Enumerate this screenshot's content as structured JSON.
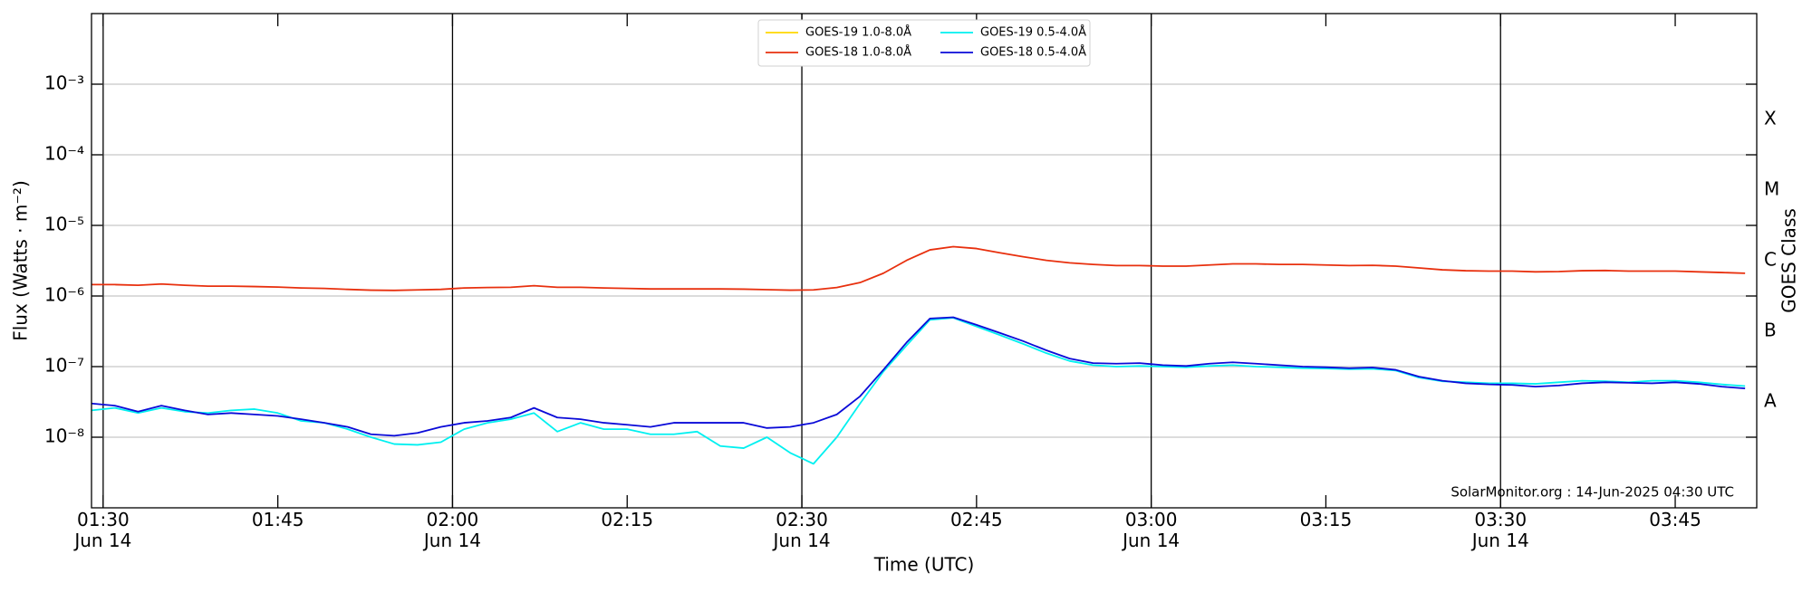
{
  "chart_data": {
    "type": "line",
    "y_label": "Flux (Watts · m⁻²)",
    "x_label": "Time (UTC)",
    "y2_label": "GOES Class",
    "annotation": "SolarMonitor.org : 14-Jun-2025 04:30 UTC",
    "log_y": true,
    "grid": true,
    "legend": "top",
    "xlim": [
      "01:29",
      "03:52"
    ],
    "ylim": [
      1e-09,
      0.01
    ],
    "xticks": [
      {
        "value": "01:30",
        "label": "01:30\nJun 14"
      },
      "01:45",
      {
        "value": "02:00",
        "label": "02:00\nJun 14"
      },
      "02:15",
      {
        "value": "02:30",
        "label": "02:30\nJun 14"
      },
      "02:45",
      {
        "value": "03:00",
        "label": "03:00\nJun 14"
      },
      "03:15",
      {
        "value": "03:30",
        "label": "03:30\nJun 14"
      },
      "03:45"
    ],
    "yticks": [
      {
        "value": 0.001,
        "label": "10⁻³"
      },
      {
        "value": 0.0001,
        "label": "10⁻⁴"
      },
      {
        "value": 1e-05,
        "label": "10⁻⁵"
      },
      {
        "value": 1e-06,
        "label": "10⁻⁶"
      },
      {
        "value": 1e-07,
        "label": "10⁻⁷"
      },
      {
        "value": 1e-08,
        "label": "10⁻⁸"
      }
    ],
    "vlines": [
      "01:30",
      "02:00",
      "02:30",
      "03:00",
      "03:30"
    ],
    "classes": [
      {
        "label": "A",
        "value": 1e-08
      },
      {
        "label": "B",
        "value": 1e-07
      },
      {
        "label": "C",
        "value": 1e-06
      },
      {
        "label": "M",
        "value": 1e-05
      },
      {
        "label": "X",
        "value": 0.0001
      }
    ],
    "x": [
      "01:29",
      "01:31",
      "01:33",
      "01:35",
      "01:37",
      "01:39",
      "01:41",
      "01:43",
      "01:45",
      "01:47",
      "01:49",
      "01:51",
      "01:53",
      "01:55",
      "01:57",
      "01:59",
      "02:01",
      "02:03",
      "02:05",
      "02:07",
      "02:09",
      "02:11",
      "02:13",
      "02:15",
      "02:17",
      "02:19",
      "02:21",
      "02:23",
      "02:25",
      "02:27",
      "02:29",
      "02:31",
      "02:33",
      "02:35",
      "02:37",
      "02:39",
      "02:41",
      "02:43",
      "02:45",
      "02:47",
      "02:49",
      "02:51",
      "02:53",
      "02:55",
      "02:57",
      "02:59",
      "03:01",
      "03:03",
      "03:05",
      "03:07",
      "03:09",
      "03:11",
      "03:13",
      "03:15",
      "03:17",
      "03:19",
      "03:21",
      "03:23",
      "03:25",
      "03:27",
      "03:29",
      "03:31",
      "03:33",
      "03:35",
      "03:37",
      "03:39",
      "03:41",
      "03:43",
      "03:45",
      "03:47",
      "03:49",
      "03:51"
    ],
    "series": [
      {
        "name": "GOES-19 1.0-8.0Å",
        "color": "#ffd700",
        "values": [
          null,
          null,
          null,
          null,
          null,
          null,
          null,
          null,
          null,
          null,
          null,
          null,
          null,
          null,
          null,
          null,
          null,
          null,
          null,
          null,
          null,
          null,
          null,
          null,
          null,
          null,
          null,
          null,
          null,
          null,
          null,
          null,
          null,
          null,
          null,
          null,
          null,
          null,
          null,
          null,
          null,
          null,
          null,
          null,
          null,
          null,
          null,
          null,
          null,
          null,
          null,
          null,
          null,
          null,
          null,
          null,
          null,
          null,
          null,
          null,
          null,
          null,
          null,
          null,
          null,
          null,
          null,
          null,
          null,
          null,
          null,
          null
        ]
      },
      {
        "name": "GOES-18 1.0-8.0Å",
        "color": "#e8300e",
        "values": [
          1.45e-06,
          1.45e-06,
          1.42e-06,
          1.48e-06,
          1.42e-06,
          1.38e-06,
          1.38e-06,
          1.36e-06,
          1.34e-06,
          1.3e-06,
          1.28e-06,
          1.24e-06,
          1.21e-06,
          1.2e-06,
          1.22e-06,
          1.24e-06,
          1.3e-06,
          1.32e-06,
          1.33e-06,
          1.4e-06,
          1.33e-06,
          1.33e-06,
          1.3e-06,
          1.28e-06,
          1.26e-06,
          1.26e-06,
          1.26e-06,
          1.26e-06,
          1.25e-06,
          1.23e-06,
          1.21e-06,
          1.22e-06,
          1.32e-06,
          1.55e-06,
          2.1e-06,
          3.2e-06,
          4.5e-06,
          5e-06,
          4.7e-06,
          4.1e-06,
          3.6e-06,
          3.2e-06,
          2.95e-06,
          2.8e-06,
          2.7e-06,
          2.7e-06,
          2.65e-06,
          2.65e-06,
          2.75e-06,
          2.85e-06,
          2.85e-06,
          2.8e-06,
          2.8e-06,
          2.75e-06,
          2.7e-06,
          2.72e-06,
          2.65e-06,
          2.5e-06,
          2.35e-06,
          2.28e-06,
          2.25e-06,
          2.25e-06,
          2.2e-06,
          2.22e-06,
          2.28e-06,
          2.3e-06,
          2.25e-06,
          2.25e-06,
          2.25e-06,
          2.2e-06,
          2.15e-06,
          2.1e-06
        ]
      },
      {
        "name": "GOES-19 0.5-4.0Å",
        "color": "#00f0f0",
        "values": [
          2.4e-08,
          2.6e-08,
          2.2e-08,
          2.6e-08,
          2.3e-08,
          2.2e-08,
          2.4e-08,
          2.5e-08,
          2.2e-08,
          1.7e-08,
          1.6e-08,
          1.3e-08,
          1e-08,
          8e-09,
          7.8e-09,
          8.5e-09,
          1.3e-08,
          1.6e-08,
          1.8e-08,
          2.2e-08,
          1.2e-08,
          1.6e-08,
          1.3e-08,
          1.3e-08,
          1.1e-08,
          1.1e-08,
          1.2e-08,
          7.5e-09,
          7e-09,
          1e-08,
          6e-09,
          4.2e-09,
          1e-08,
          3e-08,
          8.5e-08,
          2e-07,
          4.6e-07,
          4.9e-07,
          3.7e-07,
          2.8e-07,
          2.1e-07,
          1.55e-07,
          1.2e-07,
          1.05e-07,
          1e-07,
          1.02e-07,
          1e-07,
          9.8e-08,
          1.02e-07,
          1.05e-07,
          1e-07,
          9.8e-08,
          9.5e-08,
          9.4e-08,
          9.2e-08,
          9.3e-08,
          8.8e-08,
          7e-08,
          6.2e-08,
          6e-08,
          5.8e-08,
          5.8e-08,
          5.7e-08,
          6e-08,
          6.3e-08,
          6.2e-08,
          6e-08,
          6.3e-08,
          6.3e-08,
          6e-08,
          5.6e-08,
          5.3e-08
        ]
      },
      {
        "name": "GOES-18 0.5-4.0Å",
        "color": "#0a0ad8",
        "values": [
          3e-08,
          2.8e-08,
          2.3e-08,
          2.8e-08,
          2.4e-08,
          2.1e-08,
          2.2e-08,
          2.1e-08,
          2e-08,
          1.8e-08,
          1.6e-08,
          1.4e-08,
          1.1e-08,
          1.05e-08,
          1.15e-08,
          1.4e-08,
          1.6e-08,
          1.7e-08,
          1.9e-08,
          2.6e-08,
          1.9e-08,
          1.8e-08,
          1.6e-08,
          1.5e-08,
          1.4e-08,
          1.6e-08,
          1.6e-08,
          1.6e-08,
          1.6e-08,
          1.35e-08,
          1.4e-08,
          1.6e-08,
          2.1e-08,
          3.8e-08,
          9e-08,
          2.2e-07,
          4.8e-07,
          5e-07,
          3.9e-07,
          3e-07,
          2.3e-07,
          1.7e-07,
          1.3e-07,
          1.12e-07,
          1.1e-07,
          1.12e-07,
          1.05e-07,
          1.02e-07,
          1.1e-07,
          1.15e-07,
          1.1e-07,
          1.05e-07,
          1e-07,
          9.8e-08,
          9.5e-08,
          9.7e-08,
          9e-08,
          7.2e-08,
          6.3e-08,
          5.8e-08,
          5.6e-08,
          5.5e-08,
          5.2e-08,
          5.4e-08,
          5.8e-08,
          6e-08,
          5.9e-08,
          5.8e-08,
          6e-08,
          5.7e-08,
          5.2e-08,
          4.9e-08
        ]
      }
    ]
  }
}
